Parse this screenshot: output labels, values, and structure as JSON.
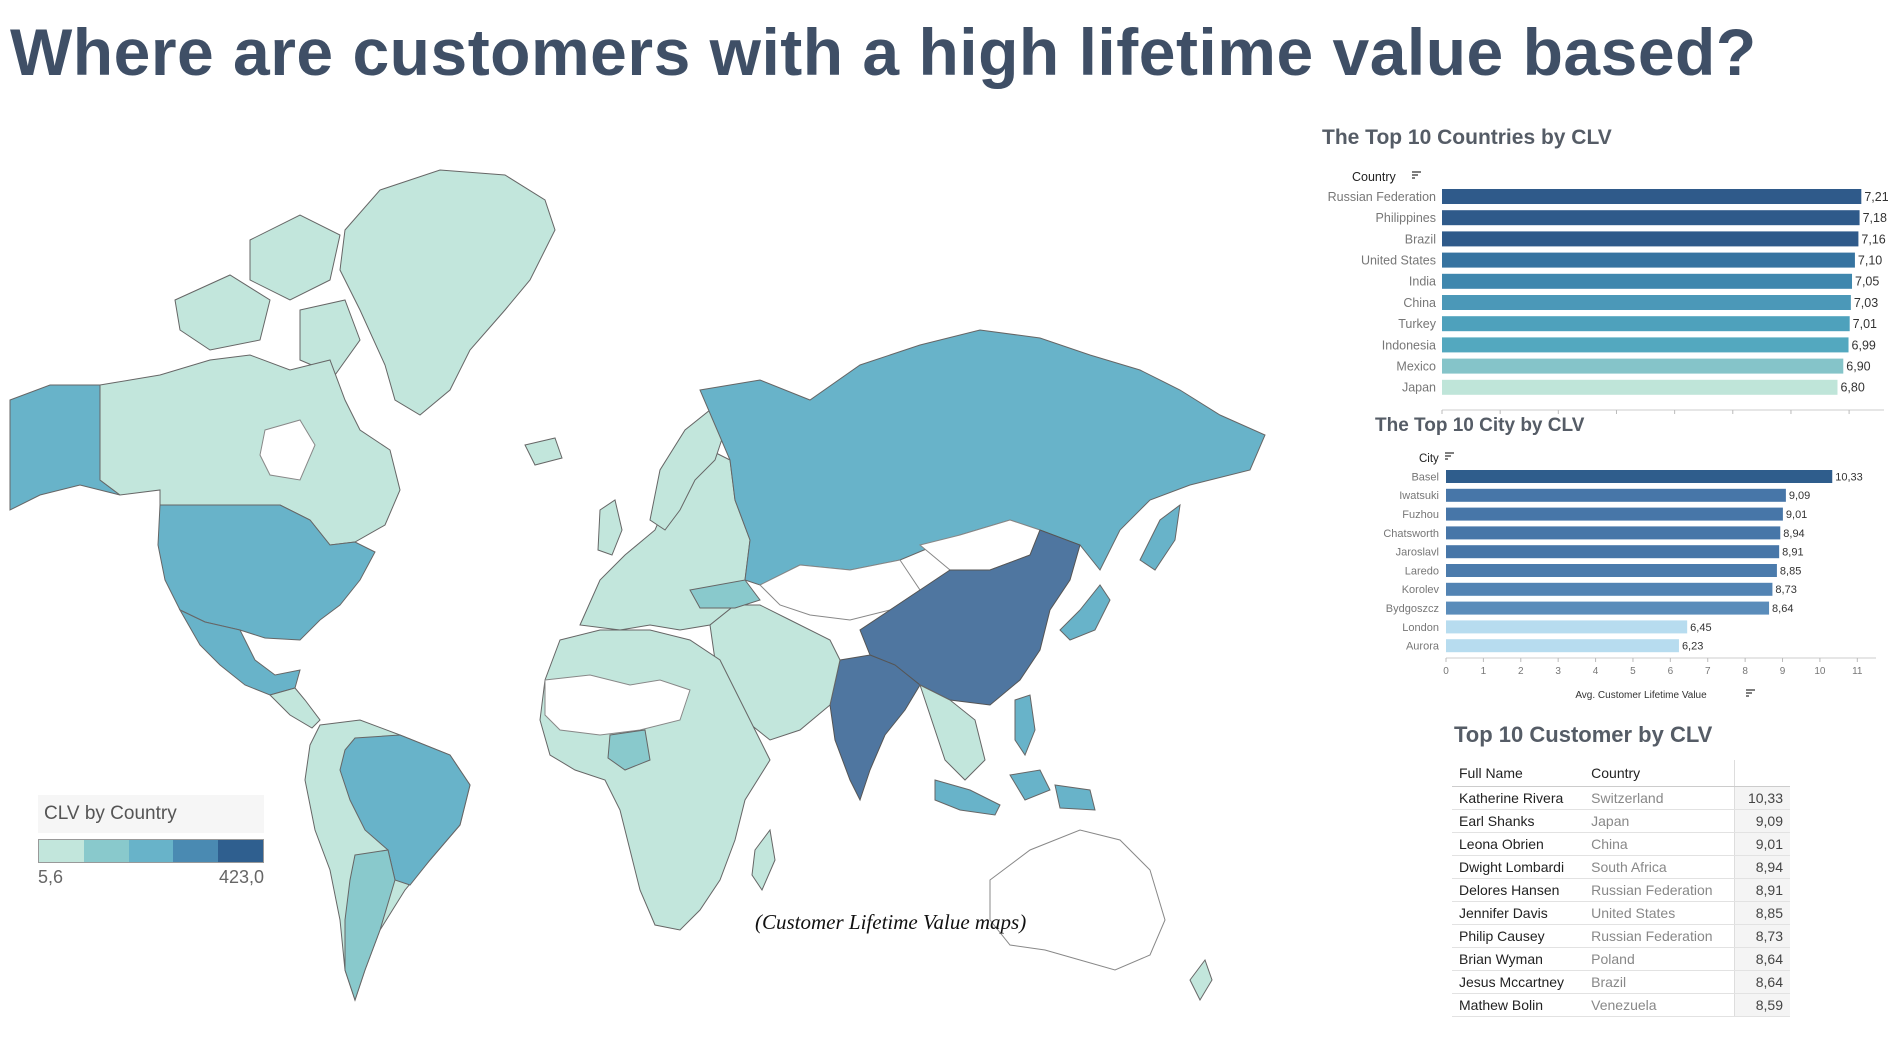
{
  "page": {
    "title": "Where are customers with a high lifetime value based?",
    "caption": "(Customer Lifetime Value maps)"
  },
  "colors": {
    "scale": [
      "#c2e6dc",
      "#89c9cc",
      "#68b3c9",
      "#4a8ab2",
      "#2f5f8f"
    ],
    "title": "#3f4f66"
  },
  "map": {
    "legend_title": "CLV by Country",
    "legend_min": "5,6",
    "legend_max": "423,0"
  },
  "countries_chart": {
    "title": "The Top 10 Countries by CLV",
    "category_header": "Country",
    "items": [
      {
        "label": "Russian Federation",
        "value_text": "7,21",
        "color": "#2f5a8a"
      },
      {
        "label": "Philippines",
        "value_text": "7,18",
        "color": "#2f5a8a"
      },
      {
        "label": "Brazil",
        "value_text": "7,16",
        "color": "#2f5a8a"
      },
      {
        "label": "United States",
        "value_text": "7,10",
        "color": "#3673a0"
      },
      {
        "label": "India",
        "value_text": "7,05",
        "color": "#3f87ae"
      },
      {
        "label": "China",
        "value_text": "7,03",
        "color": "#4b98b8"
      },
      {
        "label": "Turkey",
        "value_text": "7,01",
        "color": "#4ea1bc"
      },
      {
        "label": "Indonesia",
        "value_text": "6,99",
        "color": "#53a8bf"
      },
      {
        "label": "Mexico",
        "value_text": "6,90",
        "color": "#85c4c9"
      },
      {
        "label": "Japan",
        "value_text": "6,80",
        "color": "#bfe5d9"
      }
    ],
    "ticks": [
      "0",
      "1",
      "2",
      "3",
      "4",
      "5",
      "6",
      "7"
    ]
  },
  "chart_data": [
    {
      "type": "bar",
      "orientation": "horizontal",
      "title": "The Top 10 Countries by CLV",
      "ylabel": "Country",
      "categories": [
        "Russian Federation",
        "Philippines",
        "Brazil",
        "United States",
        "India",
        "China",
        "Turkey",
        "Indonesia",
        "Mexico",
        "Japan"
      ],
      "values": [
        7.21,
        7.18,
        7.16,
        7.1,
        7.05,
        7.03,
        7.01,
        6.99,
        6.9,
        6.8
      ],
      "xlim": [
        0,
        7.6
      ]
    },
    {
      "type": "bar",
      "orientation": "horizontal",
      "title": "The Top 10 City by CLV",
      "ylabel": "City",
      "xlabel": "Avg. Customer Lifetime Value",
      "categories": [
        "Basel",
        "Iwatsuki",
        "Fuzhou",
        "Chatsworth",
        "Jaroslavl",
        "Laredo",
        "Korolev",
        "Bydgoszcz",
        "London",
        "Aurora"
      ],
      "values": [
        10.33,
        9.09,
        9.01,
        8.94,
        8.91,
        8.85,
        8.73,
        8.64,
        6.45,
        6.23
      ],
      "xlim": [
        0,
        11.5
      ]
    },
    {
      "type": "table",
      "title": "Top 10 Customer by CLV",
      "columns": [
        "Full Name",
        "Country",
        ""
      ],
      "rows": [
        [
          "Katherine Rivera",
          "Switzerland",
          "10,33"
        ],
        [
          "Earl Shanks",
          "Japan",
          "9,09"
        ],
        [
          "Leona Obrien",
          "China",
          "9,01"
        ],
        [
          "Dwight Lombardi",
          "South Africa",
          "8,94"
        ],
        [
          "Delores Hansen",
          "Russian Federation",
          "8,91"
        ],
        [
          "Jennifer Davis",
          "United States",
          "8,85"
        ],
        [
          "Philip Causey",
          "Russian Federation",
          "8,73"
        ],
        [
          "Brian Wyman",
          "Poland",
          "8,64"
        ],
        [
          "Jesus Mccartney",
          "Brazil",
          "8,64"
        ],
        [
          "Mathew Bolin",
          "Venezuela",
          "8,59"
        ]
      ]
    }
  ],
  "cities_chart": {
    "title": "The Top 10 City by CLV",
    "category_header": "City",
    "xlabel": "Avg. Customer Lifetime Value",
    "items": [
      {
        "label": "Basel",
        "value_text": "10,33",
        "color": "#2f5d8c"
      },
      {
        "label": "Iwatsuki",
        "value_text": "9,09",
        "color": "#4776a8"
      },
      {
        "label": "Fuzhou",
        "value_text": "9,01",
        "color": "#4776a8"
      },
      {
        "label": "Chatsworth",
        "value_text": "8,94",
        "color": "#4776a8"
      },
      {
        "label": "Jaroslavl",
        "value_text": "8,91",
        "color": "#4776a8"
      },
      {
        "label": "Laredo",
        "value_text": "8,85",
        "color": "#4b7bac"
      },
      {
        "label": "Korolev",
        "value_text": "8,73",
        "color": "#5283b3"
      },
      {
        "label": "Bydgoszcz",
        "value_text": "8,64",
        "color": "#5a8cba"
      },
      {
        "label": "London",
        "value_text": "6,45",
        "color": "#b7dcef"
      },
      {
        "label": "Aurora",
        "value_text": "6,23",
        "color": "#b7dcef"
      }
    ],
    "ticks": [
      "0",
      "1",
      "2",
      "3",
      "4",
      "5",
      "6",
      "7",
      "8",
      "9",
      "10",
      "11"
    ]
  },
  "customers_table": {
    "title": "Top 10 Customer by CLV",
    "col_name": "Full Name",
    "col_country": "Country"
  }
}
